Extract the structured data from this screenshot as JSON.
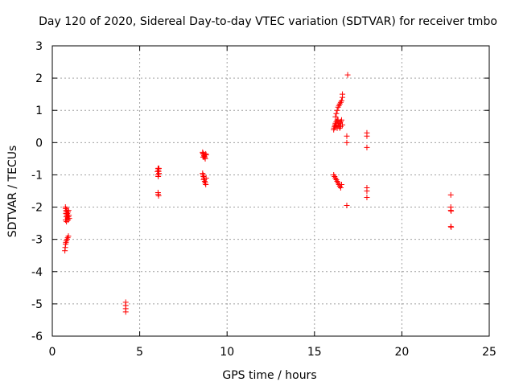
{
  "chart_data": {
    "type": "scatter",
    "title": "Day 120 of 2020, Sidereal Day-to-day VTEC variation (SDTVAR) for receiver tmbo",
    "xlabel": "GPS time / hours",
    "ylabel": "SDTVAR / TECUs",
    "xlim": [
      0,
      25
    ],
    "ylim": [
      -6,
      3
    ],
    "xticks": [
      0,
      5,
      10,
      15,
      20,
      25
    ],
    "yticks": [
      -6,
      -5,
      -4,
      -3,
      -2,
      -1,
      0,
      1,
      2,
      3
    ],
    "grid": true,
    "marker": "+",
    "color": "#ff0000",
    "series": [
      {
        "name": "SDTVAR",
        "points": [
          [
            0.75,
            -2.0
          ],
          [
            0.77,
            -2.05
          ],
          [
            0.79,
            -2.1
          ],
          [
            0.8,
            -2.15
          ],
          [
            0.82,
            -2.2
          ],
          [
            0.84,
            -2.25
          ],
          [
            0.86,
            -2.3
          ],
          [
            0.88,
            -2.35
          ],
          [
            0.9,
            -2.4
          ],
          [
            0.92,
            -2.3
          ],
          [
            0.78,
            -2.2
          ],
          [
            0.8,
            -2.3
          ],
          [
            0.83,
            -2.1
          ],
          [
            0.86,
            -2.2
          ],
          [
            0.9,
            -2.15
          ],
          [
            0.95,
            -2.25
          ],
          [
            0.97,
            -2.35
          ],
          [
            0.76,
            -2.4
          ],
          [
            0.81,
            -2.45
          ],
          [
            0.93,
            -2.1
          ],
          [
            0.72,
            -3.35
          ],
          [
            0.74,
            -3.25
          ],
          [
            0.76,
            -3.15
          ],
          [
            0.78,
            -3.1
          ],
          [
            0.8,
            -3.05
          ],
          [
            0.84,
            -3.0
          ],
          [
            0.88,
            -2.95
          ],
          [
            0.92,
            -2.9
          ],
          [
            4.2,
            -4.95
          ],
          [
            4.2,
            -5.05
          ],
          [
            4.2,
            -5.15
          ],
          [
            4.2,
            -5.25
          ],
          [
            6.05,
            -0.8
          ],
          [
            6.07,
            -0.85
          ],
          [
            6.08,
            -0.9
          ],
          [
            6.1,
            -0.95
          ],
          [
            6.05,
            -1.0
          ],
          [
            6.06,
            -1.05
          ],
          [
            6.1,
            -0.8
          ],
          [
            6.02,
            -0.9
          ],
          [
            6.05,
            -1.55
          ],
          [
            6.06,
            -1.6
          ],
          [
            6.08,
            -1.65
          ],
          [
            8.6,
            -0.3
          ],
          [
            8.62,
            -0.33
          ],
          [
            8.65,
            -0.36
          ],
          [
            8.68,
            -0.4
          ],
          [
            8.7,
            -0.43
          ],
          [
            8.72,
            -0.46
          ],
          [
            8.75,
            -0.5
          ],
          [
            8.78,
            -0.35
          ],
          [
            8.8,
            -0.38
          ],
          [
            8.63,
            -0.45
          ],
          [
            8.6,
            -0.95
          ],
          [
            8.62,
            -1.0
          ],
          [
            8.65,
            -1.05
          ],
          [
            8.68,
            -1.1
          ],
          [
            8.7,
            -1.15
          ],
          [
            8.72,
            -1.2
          ],
          [
            8.75,
            -1.25
          ],
          [
            8.78,
            -1.3
          ],
          [
            8.8,
            -1.1
          ],
          [
            8.66,
            -1.15
          ],
          [
            16.1,
            0.4
          ],
          [
            16.12,
            0.45
          ],
          [
            16.15,
            0.5
          ],
          [
            16.18,
            0.55
          ],
          [
            16.2,
            0.6
          ],
          [
            16.25,
            0.65
          ],
          [
            16.3,
            0.7
          ],
          [
            16.35,
            0.55
          ],
          [
            16.4,
            0.5
          ],
          [
            16.45,
            0.6
          ],
          [
            16.5,
            0.65
          ],
          [
            16.55,
            0.7
          ],
          [
            16.6,
            0.55
          ],
          [
            16.2,
            0.5
          ],
          [
            16.3,
            0.45
          ],
          [
            16.4,
            0.6
          ],
          [
            16.5,
            0.5
          ],
          [
            16.35,
            0.7
          ],
          [
            16.25,
            0.55
          ],
          [
            16.45,
            0.45
          ],
          [
            16.2,
            0.8
          ],
          [
            16.25,
            0.9
          ],
          [
            16.3,
            1.0
          ],
          [
            16.35,
            1.1
          ],
          [
            16.4,
            1.15
          ],
          [
            16.45,
            1.2
          ],
          [
            16.5,
            1.25
          ],
          [
            16.55,
            1.3
          ],
          [
            16.6,
            1.4
          ],
          [
            16.6,
            1.5
          ],
          [
            16.1,
            -1.0
          ],
          [
            16.15,
            -1.05
          ],
          [
            16.2,
            -1.1
          ],
          [
            16.25,
            -1.15
          ],
          [
            16.3,
            -1.2
          ],
          [
            16.35,
            -1.25
          ],
          [
            16.4,
            -1.3
          ],
          [
            16.45,
            -1.35
          ],
          [
            16.5,
            -1.4
          ],
          [
            16.55,
            -1.3
          ],
          [
            16.9,
            2.1
          ],
          [
            16.85,
            0.2
          ],
          [
            16.85,
            0.0
          ],
          [
            16.85,
            -1.95
          ],
          [
            18.0,
            0.3
          ],
          [
            18.0,
            0.2
          ],
          [
            18.0,
            -0.15
          ],
          [
            18.0,
            -1.4
          ],
          [
            18.0,
            -1.5
          ],
          [
            18.0,
            -1.7
          ],
          [
            22.8,
            -1.62
          ],
          [
            22.8,
            -2.0
          ],
          [
            22.8,
            -2.1
          ],
          [
            22.82,
            -2.12
          ],
          [
            22.8,
            -2.6
          ],
          [
            22.82,
            -2.62
          ]
        ]
      }
    ]
  }
}
